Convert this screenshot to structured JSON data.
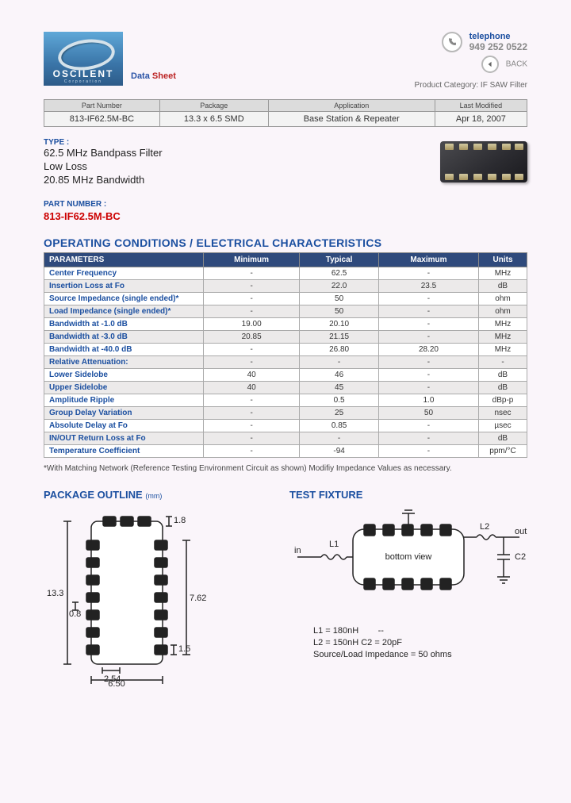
{
  "header": {
    "logo_name": "OSCILENT",
    "logo_sub": "Corporation",
    "data_label_1": "Data",
    "data_label_2": "Sheet",
    "telephone_label": "telephone",
    "telephone_number": "949 252 0522",
    "back_label": "BACK",
    "product_category_label": "Product Category:",
    "product_category_value": "IF SAW Filter"
  },
  "info": {
    "headers": [
      "Part Number",
      "Package",
      "Application",
      "Last Modified"
    ],
    "values": [
      "813-IF62.5M-BC",
      "13.3 x 6.5 SMD",
      "Base Station & Repeater",
      "Apr 18, 2007"
    ]
  },
  "type": {
    "label": "TYPE :",
    "lines": [
      "62.5 MHz Bandpass Filter",
      "Low Loss",
      "20.85 MHz Bandwidth"
    ]
  },
  "part": {
    "label": "PART NUMBER :",
    "number": "813-IF62.5M-BC"
  },
  "spec_section_title": "OPERATING CONDITIONS / ELECTRICAL CHARACTERISTICS",
  "spec_headers": [
    "PARAMETERS",
    "Minimum",
    "Typical",
    "Maximum",
    "Units"
  ],
  "spec_rows": [
    {
      "p": "Center Frequency",
      "min": "-",
      "typ": "62.5",
      "max": "-",
      "u": "MHz"
    },
    {
      "p": "Insertion Loss at Fo",
      "min": "-",
      "typ": "22.0",
      "max": "23.5",
      "u": "dB"
    },
    {
      "p": "Source Impedance (single ended)*",
      "min": "-",
      "typ": "50",
      "max": "-",
      "u": "ohm"
    },
    {
      "p": "Load Impedance (single ended)*",
      "min": "-",
      "typ": "50",
      "max": "-",
      "u": "ohm"
    },
    {
      "p": "Bandwidth at -1.0 dB",
      "min": "19.00",
      "typ": "20.10",
      "max": "-",
      "u": "MHz"
    },
    {
      "p": "Bandwidth at -3.0 dB",
      "min": "20.85",
      "typ": "21.15",
      "max": "-",
      "u": "MHz"
    },
    {
      "p": "Bandwidth at -40.0 dB",
      "min": "-",
      "typ": "26.80",
      "max": "28.20",
      "u": "MHz"
    },
    {
      "p": "Relative Attenuation:",
      "min": "-",
      "typ": "-",
      "max": "-",
      "u": "-"
    },
    {
      "p": "Lower Sidelobe",
      "min": "40",
      "typ": "46",
      "max": "-",
      "u": "dB"
    },
    {
      "p": "Upper Sidelobe",
      "min": "40",
      "typ": "45",
      "max": "-",
      "u": "dB"
    },
    {
      "p": "Amplitude Ripple",
      "min": "-",
      "typ": "0.5",
      "max": "1.0",
      "u": "dBp-p"
    },
    {
      "p": "Group Delay Variation",
      "min": "-",
      "typ": "25",
      "max": "50",
      "u": "nsec"
    },
    {
      "p": "Absolute Delay at Fo",
      "min": "-",
      "typ": "0.85",
      "max": "-",
      "u": "µsec"
    },
    {
      "p": "IN/OUT Return Loss at Fo",
      "min": "-",
      "typ": "-",
      "max": "-",
      "u": "dB"
    },
    {
      "p": "Temperature Coefficient",
      "min": "-",
      "typ": "-94",
      "max": "-",
      "u": "ppm/°C"
    }
  ],
  "footnote": "*With Matching Network (Reference Testing Environment Circuit as shown) Modifiy Impedance Values as necessary.",
  "package": {
    "title": "PACKAGE OUTLINE",
    "unit": "(mm)",
    "dims": {
      "w": "6.50",
      "h": "13.3",
      "pad_h": "1.8",
      "inner_w": "7.62",
      "pad_w": "2.54",
      "pitch": "0.8",
      "small": "1.5"
    }
  },
  "fixture": {
    "title": "TEST FIXTURE",
    "labels": {
      "in": "in",
      "out": "out",
      "L1": "L1",
      "L2": "L2",
      "C2": "C2",
      "bottom": "bottom view"
    },
    "text_lines": [
      "L1 =   180nH",
      "L2 =   150nH          C2 = 20pF",
      "Source/Load Impedance = 50 ohms"
    ],
    "dash": "--"
  },
  "colors": {
    "brand_blue": "#1b4fa0",
    "header_blue": "#2f4a7c",
    "red": "#c00",
    "page_bg": "#faf5fa"
  }
}
